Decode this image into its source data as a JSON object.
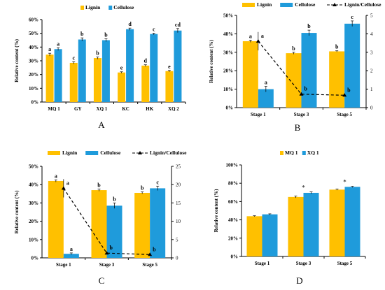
{
  "colors": {
    "lignin": "#FFC000",
    "cellulose": "#1F9BDB",
    "ratio": "#000000",
    "axis": "#000000"
  },
  "chart_data": [
    {
      "panel_label": "A",
      "type": "bar",
      "ylabel": "Relative content (%)",
      "ylim": [
        0,
        60
      ],
      "yticks": [
        "0%",
        "10%",
        "20%",
        "30%",
        "40%",
        "50%",
        "60%"
      ],
      "legend": "top",
      "categories": [
        "MQ 1",
        "GY",
        "XQ 1",
        "KC",
        "HK",
        "XQ 2"
      ],
      "series": [
        {
          "name": "Lignin",
          "values": [
            34.5,
            28.5,
            32,
            21.5,
            26.5,
            22.5
          ],
          "errors": [
            1,
            0.8,
            0.8,
            0.5,
            0.6,
            0.5
          ],
          "letters": [
            "a",
            "c",
            "b",
            "e",
            "d",
            "e"
          ]
        },
        {
          "name": "Cellulose",
          "values": [
            38.5,
            45.5,
            45,
            53,
            49.5,
            52
          ],
          "errors": [
            1,
            1.2,
            1,
            0.8,
            0.6,
            1.5
          ],
          "letters": [
            "a",
            "b",
            "b",
            "d",
            "c",
            "cd"
          ]
        }
      ]
    },
    {
      "panel_label": "B",
      "type": "bar",
      "ylabel": "Relative content (%)",
      "ylim": [
        0,
        50
      ],
      "yticks": [
        "0%",
        "10%",
        "20%",
        "30%",
        "40%",
        "50%"
      ],
      "y2lim": [
        0,
        5
      ],
      "y2ticks": [
        "0",
        "1",
        "2",
        "3",
        "4",
        "5"
      ],
      "legend": "top",
      "categories": [
        "Stage 1",
        "Stage 3",
        "Stage 5"
      ],
      "series": [
        {
          "name": "Lignin",
          "values": [
            36,
            29.5,
            30.5
          ],
          "errors": [
            0.6,
            0.5,
            0.3
          ],
          "letters": [
            "a",
            "b",
            "b"
          ]
        },
        {
          "name": "Cellulose",
          "values": [
            10,
            40.5,
            45.5
          ],
          "errors": [
            1.5,
            1.5,
            1.5
          ],
          "letters": [
            "a",
            "b",
            "c"
          ]
        }
      ],
      "line": {
        "name": "Lignin/Cellulose",
        "values": [
          3.6,
          0.73,
          0.67
        ],
        "errors": [
          0.5,
          0.05,
          0.05
        ],
        "letters": [
          "a",
          "b",
          "b"
        ]
      }
    },
    {
      "panel_label": "C",
      "type": "bar",
      "ylabel": "Relative content (%)",
      "ylim": [
        0,
        50
      ],
      "yticks": [
        "0%",
        "10%",
        "20%",
        "30%",
        "40%",
        "50%"
      ],
      "y2lim": [
        0,
        25
      ],
      "y2ticks": [
        "0",
        "5",
        "10",
        "15",
        "20",
        "25"
      ],
      "legend": "top",
      "categories": [
        "Stage 1",
        "Stage 3",
        "Stage 5"
      ],
      "series": [
        {
          "name": "Lignin",
          "values": [
            42,
            37,
            35.5
          ],
          "errors": [
            0.6,
            0.6,
            0.5
          ],
          "letters": [
            "a",
            "b",
            "b"
          ]
        },
        {
          "name": "Cellulose",
          "values": [
            2.2,
            28.5,
            38
          ],
          "errors": [
            0.5,
            1.5,
            1.2
          ],
          "letters": [
            "a",
            "b",
            "c"
          ]
        }
      ],
      "line": {
        "name": "Lignin/Cellulose",
        "values": [
          19,
          1.3,
          0.9
        ],
        "errors": [
          2.5,
          0.1,
          0.1
        ],
        "letters": [
          "a",
          "b",
          "b"
        ]
      }
    },
    {
      "panel_label": "D",
      "type": "bar",
      "ylabel": "Relative content (%)",
      "ylim": [
        0,
        100
      ],
      "yticks": [
        "0%",
        "20%",
        "40%",
        "60%",
        "80%",
        "100%"
      ],
      "legend": "top",
      "categories": [
        "Stage 1",
        "Stage 3",
        "Stage 5"
      ],
      "series": [
        {
          "name": "MQ 1",
          "values": [
            44,
            65,
            73
          ],
          "errors": [
            0.5,
            1,
            0.6
          ],
          "letters": [
            "",
            "",
            ""
          ]
        },
        {
          "name": "XQ 1",
          "values": [
            46,
            69.5,
            76
          ],
          "errors": [
            0.6,
            1,
            0.6
          ],
          "letters": [
            "",
            "",
            ""
          ]
        }
      ],
      "markers": [
        "",
        "*",
        "*"
      ]
    }
  ]
}
